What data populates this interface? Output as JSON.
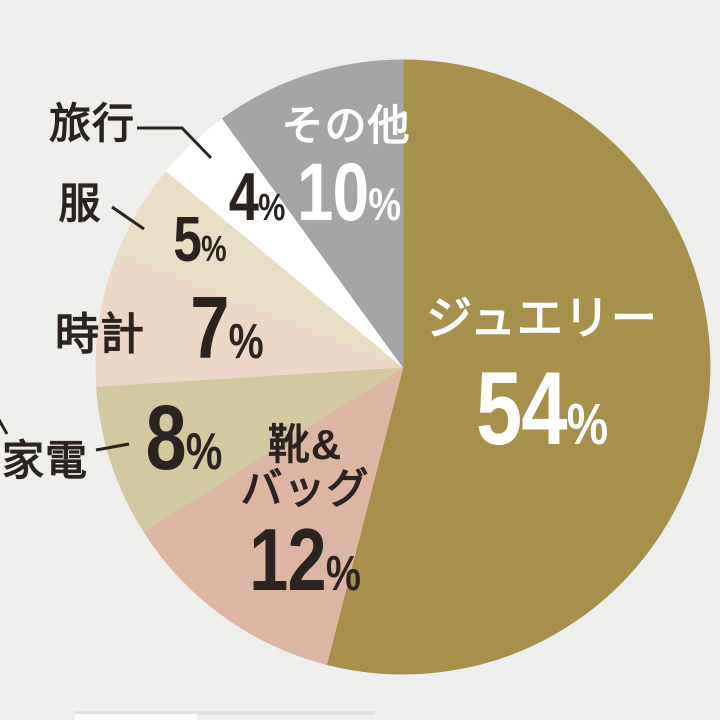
{
  "chart_data": {
    "type": "pie",
    "title": "",
    "unit": "%",
    "start_angle_deg": 0,
    "direction": "clockwise",
    "legend_position": "labels-on-and-around-slices",
    "background_color": "#eeeeed",
    "leader_line_color": "#2b2320",
    "dark_text_color": "#2b2320",
    "light_text_color": "#ffffff",
    "categories": [
      "ジュエリー",
      "靴&バッグ",
      "家電",
      "時計",
      "服",
      "旅行",
      "その他"
    ],
    "values": [
      54,
      12,
      8,
      7,
      5,
      4,
      10
    ],
    "slices": [
      {
        "id": "jewelry",
        "label": "ジュエリー",
        "value": 54,
        "display_value": "54",
        "unit": "%",
        "color": "#a6904b",
        "label_color": "#ffffff",
        "label_placement": "inside"
      },
      {
        "id": "shoes-bags",
        "label": "靴&バッグ",
        "label_line1": "靴&",
        "label_line2": "バッグ",
        "value": 12,
        "display_value": "12",
        "unit": "%",
        "color": "#dcb6a2",
        "label_color": "#2b2320",
        "label_placement": "inside"
      },
      {
        "id": "appliances",
        "label": "家電",
        "value": 8,
        "display_value": "8",
        "unit": "%",
        "color": "#d2c9a0",
        "label_color": "#2b2320",
        "label_placement": "outside-with-leader-line"
      },
      {
        "id": "watches",
        "label": "時計",
        "value": 7,
        "display_value": "7",
        "unit": "%",
        "color": "#edd7c7",
        "label_color": "#2b2320",
        "label_placement": "outside"
      },
      {
        "id": "clothes",
        "label": "服",
        "value": 5,
        "display_value": "5",
        "unit": "%",
        "color": "#e7dec3",
        "label_color": "#2b2320",
        "label_placement": "outside-with-leader-line"
      },
      {
        "id": "travel",
        "label": "旅行",
        "value": 4,
        "display_value": "4",
        "unit": "%",
        "color": "#ffffff",
        "label_color": "#2b2320",
        "label_placement": "outside-with-leader-line"
      },
      {
        "id": "other",
        "label": "その他",
        "value": 10,
        "display_value": "10",
        "unit": "%",
        "color": "#a5a4a7",
        "label_color": "#ffffff",
        "label_placement": "inside"
      }
    ]
  }
}
